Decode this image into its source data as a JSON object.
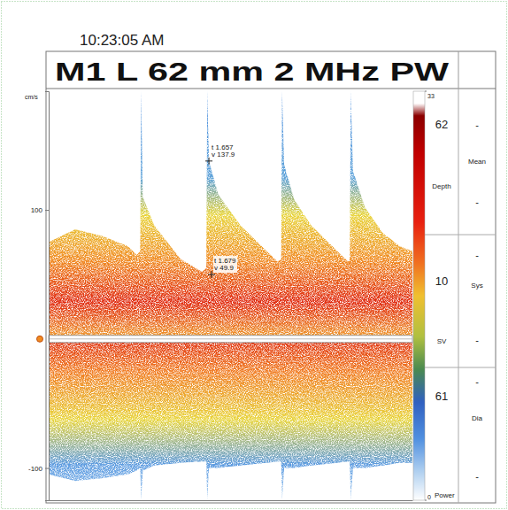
{
  "chart_data": {
    "type": "spectral_doppler",
    "timestamp": "10:23:05 AM",
    "title": "M1 L 62 mm 2 MHz PW",
    "y_label": "cm/s",
    "x": [
      0.319,
      0.54,
      0.76,
      0.98,
      1.054,
      1.083,
      1.091,
      1.105,
      1.2,
      1.42,
      1.6,
      1.635,
      1.643,
      1.657,
      1.735,
      1.92,
      2.14,
      2.23,
      2.26,
      2.268,
      2.285,
      2.37,
      2.51,
      2.73,
      2.82,
      2.833,
      2.841,
      2.86,
      2.96,
      3.11,
      3.25,
      3.356
    ],
    "series": [
      {
        "values": [
          75,
          85,
          80,
          72,
          65,
          68,
          192,
          110,
          88,
          62,
          52,
          55,
          192,
          138,
          112,
          88,
          68,
          60,
          62,
          192,
          135,
          108,
          88,
          68,
          60,
          62,
          192,
          130,
          102,
          82,
          72,
          68
        ]
      },
      {
        "values": [
          -105,
          -110,
          -108,
          -105,
          -102,
          -100,
          -125,
          -102,
          -98,
          -96,
          -95,
          -95,
          -125,
          -100,
          -100,
          -98,
          -96,
          -95,
          -95,
          -125,
          -100,
          -100,
          -98,
          -96,
          -95,
          -95,
          -125,
          -100,
          -100,
          -98,
          -96,
          -96
        ]
      }
    ],
    "xlim": [
      0.319,
      3.356
    ],
    "ylim": [
      -125,
      192
    ],
    "yticks": [
      -100,
      100
    ],
    "tick_labels": "y",
    "cursors": [
      {
        "t": 1.657,
        "v": 137.9,
        "t_label": "t 1.657",
        "v_label": "v 137.9"
      },
      {
        "t": 1.679,
        "v": 49.9,
        "t_label": "t 1.679",
        "v_label": "v 49.9"
      }
    ],
    "color_bar": {
      "range": [
        0,
        33
      ],
      "ticks": [
        0,
        33
      ]
    },
    "readouts": [
      {
        "value": 62,
        "label": "Depth"
      },
      {
        "value": 10,
        "label": "SV"
      },
      {
        "value": 61,
        "label": "Power"
      }
    ],
    "measurements": [
      {
        "label": "Mean",
        "values": [
          "-",
          "-"
        ]
      },
      {
        "label": "Sys",
        "values": [
          "-",
          "-"
        ]
      },
      {
        "label": "Dia",
        "values": [
          "-",
          "-"
        ]
      }
    ]
  }
}
